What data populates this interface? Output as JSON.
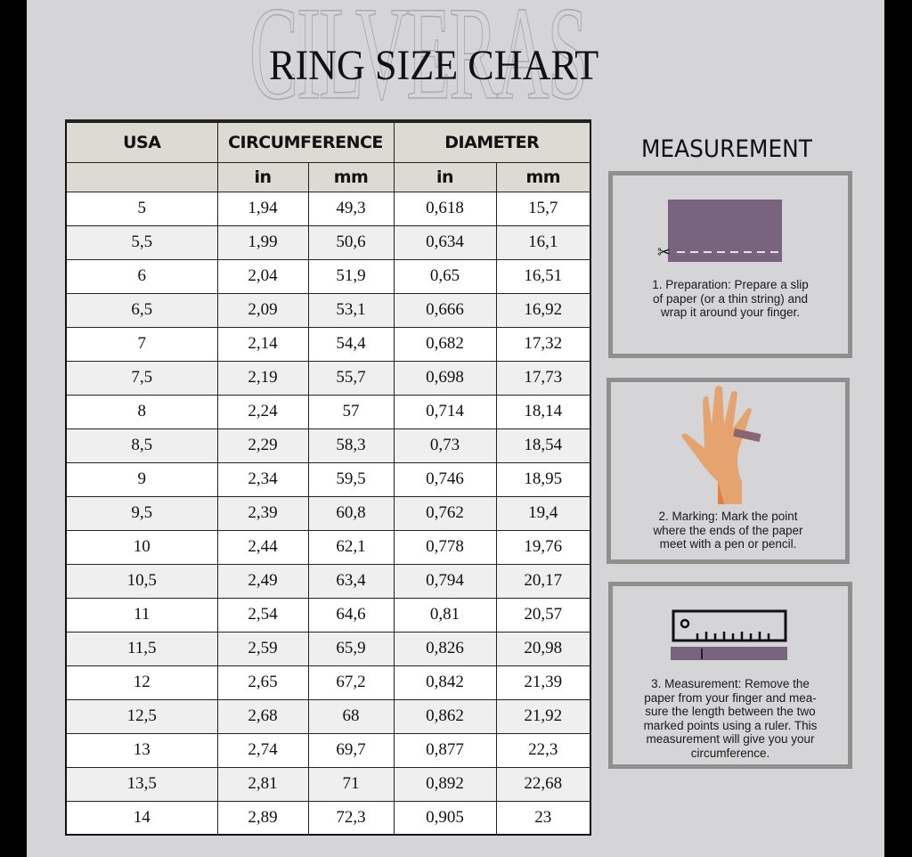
{
  "brand_watermark": "CILVERAS",
  "title": "RING SIZE CHART",
  "table": {
    "group_headers": [
      "USA",
      "CIRCUMFERENCE",
      "DIAMETER"
    ],
    "unit_headers": [
      "",
      "in",
      "mm",
      "in",
      "mm"
    ],
    "rows": [
      [
        "5",
        "1,94",
        "49,3",
        "0,618",
        "15,7"
      ],
      [
        "5,5",
        "1,99",
        "50,6",
        "0,634",
        "16,1"
      ],
      [
        "6",
        "2,04",
        "51,9",
        "0,65",
        "16,51"
      ],
      [
        "6,5",
        "2,09",
        "53,1",
        "0,666",
        "16,92"
      ],
      [
        "7",
        "2,14",
        "54,4",
        "0,682",
        "17,32"
      ],
      [
        "7,5",
        "2,19",
        "55,7",
        "0,698",
        "17,73"
      ],
      [
        "8",
        "2,24",
        "57",
        "0,714",
        "18,14"
      ],
      [
        "8,5",
        "2,29",
        "58,3",
        "0,73",
        "18,54"
      ],
      [
        "9",
        "2,34",
        "59,5",
        "0,746",
        "18,95"
      ],
      [
        "9,5",
        "2,39",
        "60,8",
        "0,762",
        "19,4"
      ],
      [
        "10",
        "2,44",
        "62,1",
        "0,778",
        "19,76"
      ],
      [
        "10,5",
        "2,49",
        "63,4",
        "0,794",
        "20,17"
      ],
      [
        "11",
        "2,54",
        "64,6",
        "0,81",
        "20,57"
      ],
      [
        "11,5",
        "2,59",
        "65,9",
        "0,826",
        "20,98"
      ],
      [
        "12",
        "2,65",
        "67,2",
        "0,842",
        "21,39"
      ],
      [
        "12,5",
        "2,68",
        "68",
        "0,862",
        "21,92"
      ],
      [
        "13",
        "2,74",
        "69,7",
        "0,877",
        "22,3"
      ],
      [
        "13,5",
        "2,81",
        "71",
        "0,892",
        "22,68"
      ],
      [
        "14",
        "2,89",
        "72,3",
        "0,905",
        "23"
      ]
    ]
  },
  "measurement": {
    "title": "MEASUREMENT",
    "steps": [
      {
        "icon": "paper-slip-scissors-icon",
        "lines": [
          "1. Preparation: Prepare a slip",
          "of paper (or a thin string) and",
          "wrap it around your finger."
        ]
      },
      {
        "icon": "hand-with-paper-ring-icon",
        "lines": [
          "2.  Marking: Mark the point",
          "where the ends of the paper",
          "meet with a pen or pencil."
        ]
      },
      {
        "icon": "ruler-icon",
        "lines": [
          "3. Measurement: Remove the",
          "paper from your finger and mea-",
          "sure the length between the two",
          "marked points using a ruler. This",
          "measurement will give you your",
          "circumference."
        ]
      }
    ]
  },
  "colors": {
    "background": "#d5d4d6",
    "paper": "#78647f",
    "skin": "#e8a56f",
    "box_border": "#8f8f8d",
    "header_bg": "#dcdbd3"
  }
}
